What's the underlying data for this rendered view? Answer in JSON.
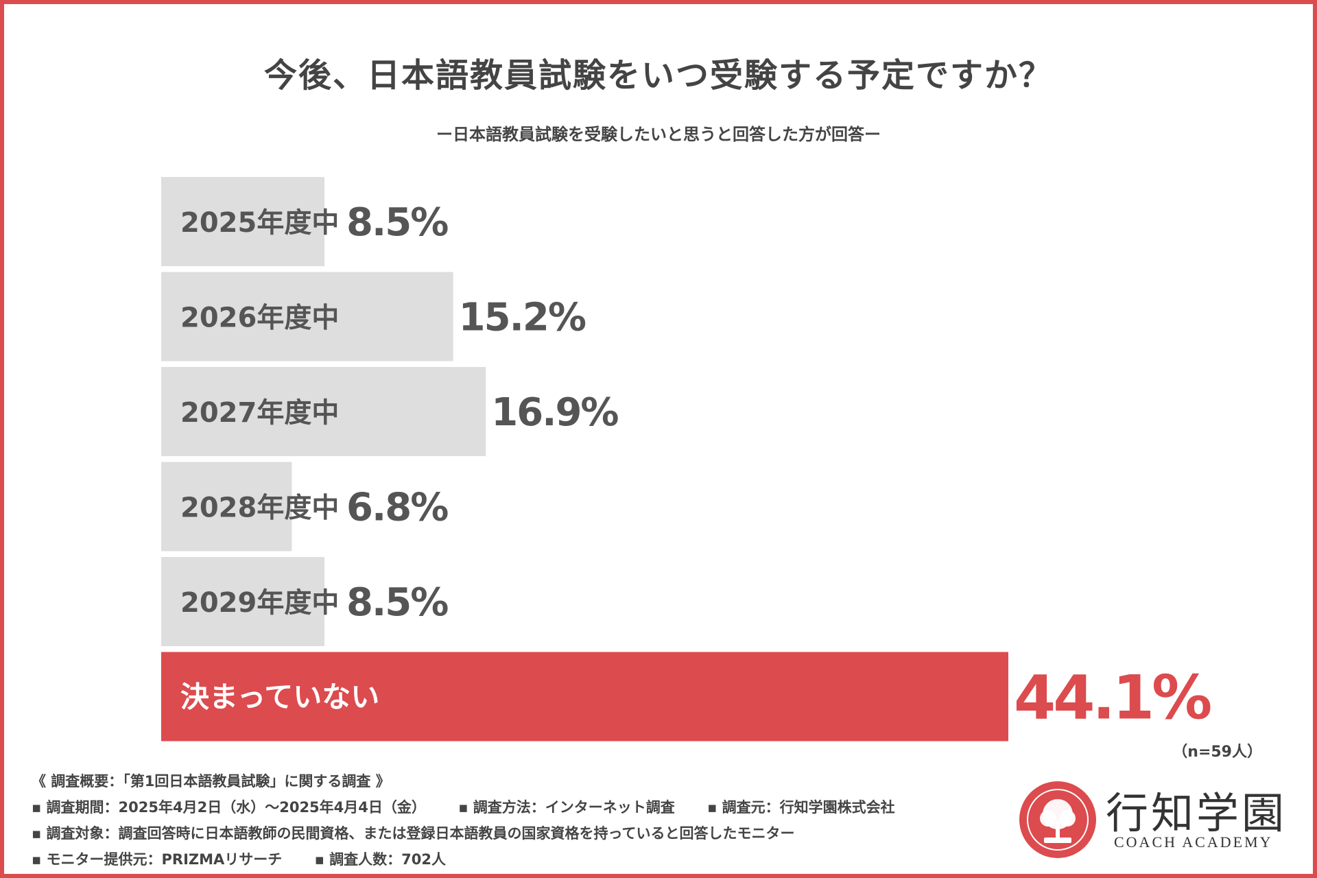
{
  "title": "今後、日本語教員試験をいつ受験する予定ですか？",
  "subtitle": "ー日本語教員試験を受験したいと思うと回答した方が回答ー",
  "n_note": "（n=59人）",
  "colors": {
    "frame": "#dc4b4e",
    "bar": "#dedede",
    "highlight": "#dc4b4e",
    "text": "#555555"
  },
  "chart_data": {
    "type": "bar",
    "orientation": "horizontal",
    "categories": [
      "2025年度中",
      "2026年度中",
      "2027年度中",
      "2028年度中",
      "2029年度中",
      "決まっていない"
    ],
    "values": [
      8.5,
      15.2,
      16.9,
      6.8,
      8.5,
      44.1
    ],
    "value_labels": [
      "8.5%",
      "15.2%",
      "16.9%",
      "6.8%",
      "8.5%",
      "44.1%"
    ],
    "highlight_index": 5,
    "xlim": [
      0,
      44.1
    ]
  },
  "notes": {
    "header": "《 調査概要：「第1回日本語教員試験」に関する調査 》",
    "rows": [
      [
        "調査期間：2025年4月2日（水）～2025年4月4日（金）",
        "調査方法：インターネット調査",
        "調査元：行知学園株式会社"
      ],
      [
        "調査対象：調査回答時に日本語教師の民間資格、または登録日本語教員の国家資格を持っていると回答したモニター"
      ],
      [
        "モニター提供元：PRIZMAリサーチ",
        "調査人数：702人"
      ]
    ]
  },
  "logo": {
    "name": "行知学園",
    "sub": "COACH ACADEMY",
    "icon": "tree-seal-icon"
  }
}
